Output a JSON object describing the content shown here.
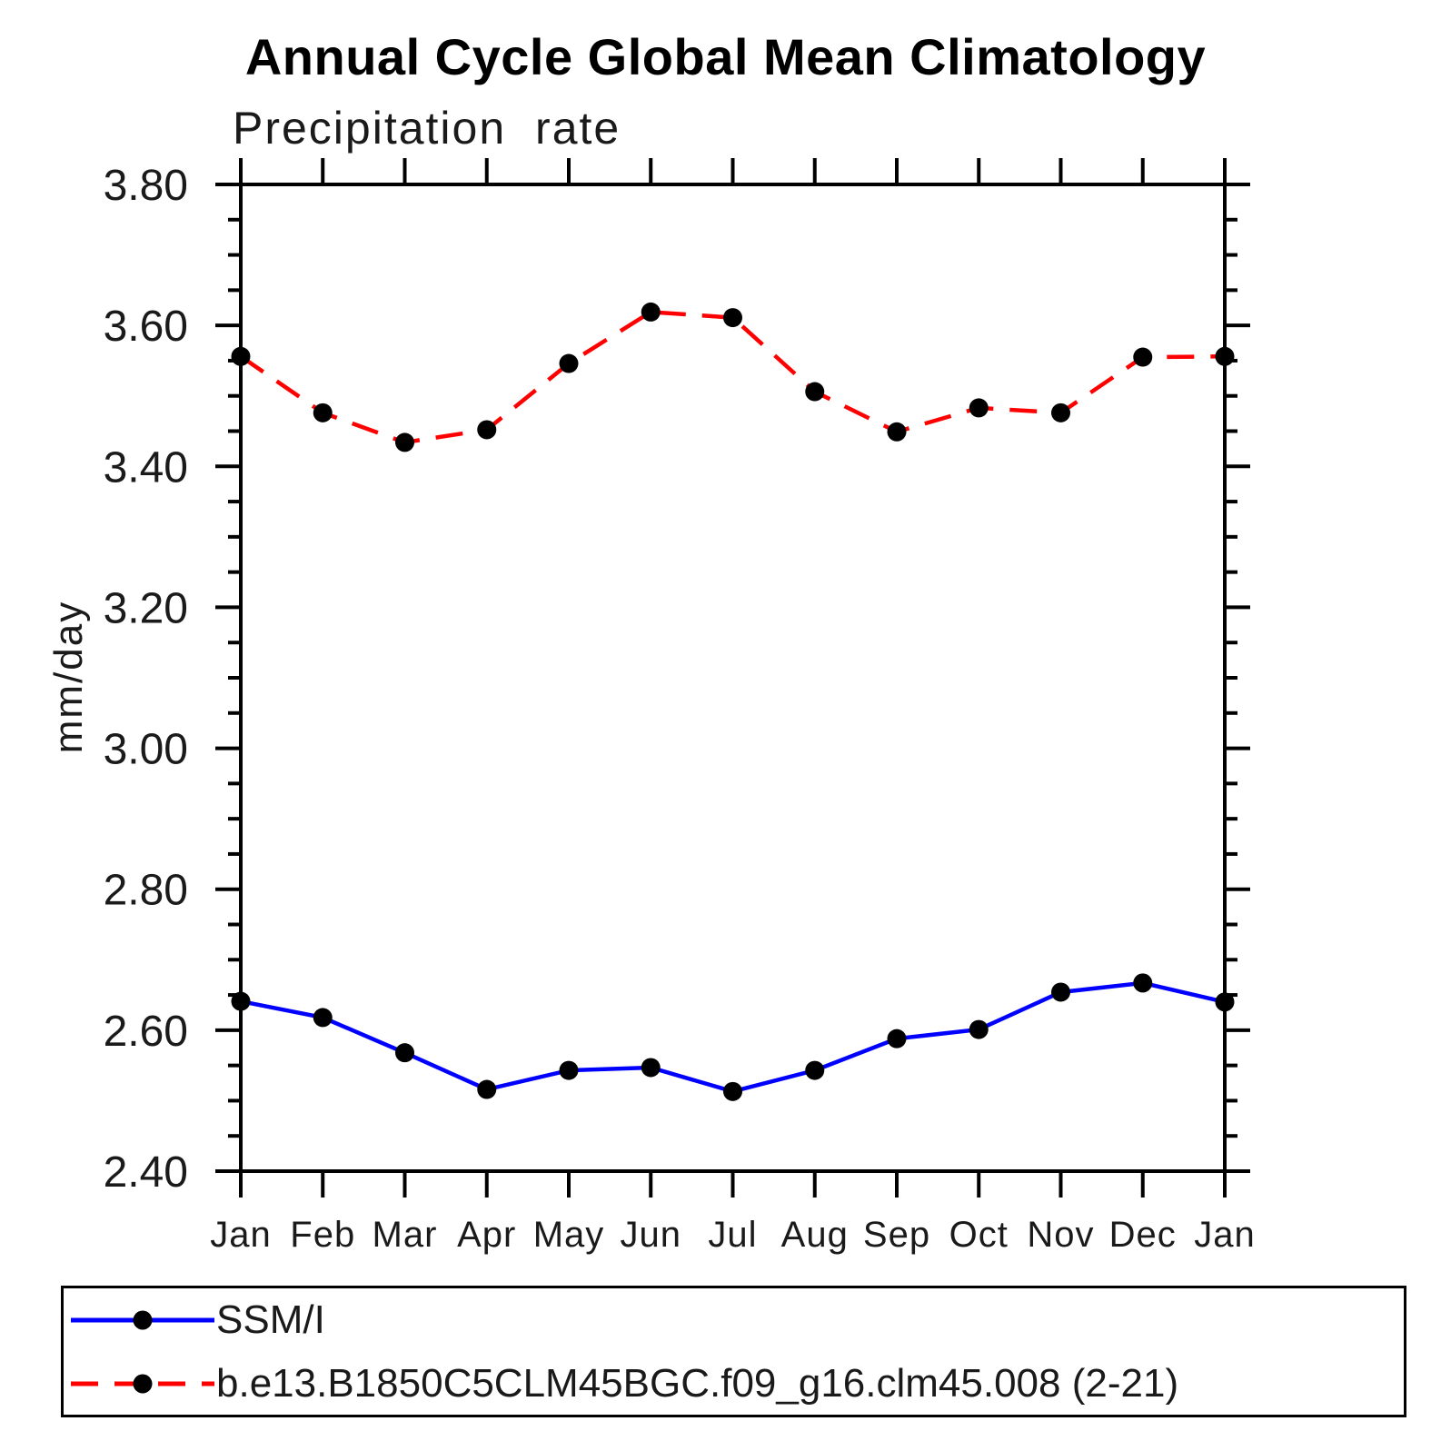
{
  "chart_data": {
    "type": "line",
    "title": "Annual Cycle Global Mean Climatology",
    "subtitle": "Precipitation rate",
    "xlabel": "",
    "ylabel": "mm/day",
    "x_categories": [
      "Jan",
      "Feb",
      "Mar",
      "Apr",
      "May",
      "Jun",
      "Jul",
      "Aug",
      "Sep",
      "Oct",
      "Nov",
      "Dec",
      "Jan"
    ],
    "ylim": [
      2.4,
      3.8
    ],
    "y_major_tick_step": 0.2,
    "y_minor_tick_step": 0.05,
    "y_tick_labels": [
      "2.40",
      "2.60",
      "2.80",
      "3.00",
      "3.20",
      "3.40",
      "3.60",
      "3.80"
    ],
    "grid": false,
    "legend_position": "bottom",
    "axis_color": "#000000",
    "series": [
      {
        "name": "SSM/I",
        "line_color": "#0000ff",
        "line_style": "solid",
        "marker": "circle",
        "marker_color": "#000000",
        "values": [
          2.641,
          2.618,
          2.568,
          2.516,
          2.543,
          2.547,
          2.513,
          2.543,
          2.588,
          2.601,
          2.654,
          2.667,
          2.64
        ]
      },
      {
        "name": "b.e13.B1850C5CLM45BGC.f09_g16.clm45.008 (2-21)",
        "line_color": "#ff0000",
        "line_style": "dashed",
        "marker": "circle",
        "marker_color": "#000000",
        "values": [
          3.556,
          3.476,
          3.434,
          3.452,
          3.546,
          3.619,
          3.611,
          3.506,
          3.449,
          3.483,
          3.476,
          3.555,
          3.556
        ]
      }
    ]
  }
}
